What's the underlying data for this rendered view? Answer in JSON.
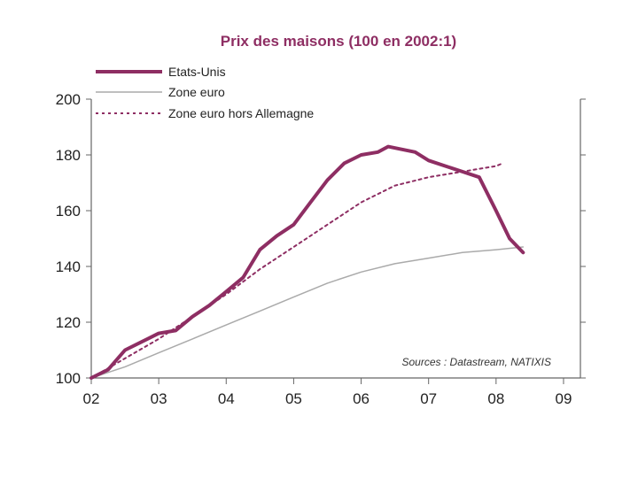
{
  "chart_data": {
    "type": "line",
    "title": "Prix des maisons (100 en 2002:1)",
    "xlabel": "",
    "ylabel": "",
    "x_ticks": [
      "02",
      "03",
      "04",
      "05",
      "06",
      "07",
      "08",
      "09"
    ],
    "y_ticks": [
      "100",
      "120",
      "140",
      "160",
      "180",
      "200"
    ],
    "xlim": [
      2002,
      2009.25
    ],
    "ylim": [
      100,
      200
    ],
    "grid": false,
    "legend_position": "top-left",
    "source": "Sources : Datastream, NATIXIS",
    "series": [
      {
        "name": "Etats-Unis",
        "color": "#8e2e63",
        "style": "solid-thick",
        "x": [
          2002.0,
          2002.25,
          2002.5,
          2002.75,
          2003.0,
          2003.25,
          2003.5,
          2003.75,
          2004.0,
          2004.25,
          2004.5,
          2004.75,
          2005.0,
          2005.25,
          2005.5,
          2005.75,
          2006.0,
          2006.25,
          2006.4,
          2006.6,
          2006.8,
          2007.0,
          2007.25,
          2007.5,
          2007.75,
          2008.0,
          2008.2,
          2008.4
        ],
        "y": [
          100,
          103,
          110,
          113,
          116,
          117,
          122,
          126,
          131,
          136,
          146,
          151,
          155,
          163,
          171,
          177,
          180,
          181,
          183,
          182,
          181,
          178,
          176,
          174,
          172,
          160,
          150,
          145
        ]
      },
      {
        "name": "Zone euro",
        "color": "#aaaaaa",
        "style": "solid-thin",
        "x": [
          2002.0,
          2002.5,
          2003.0,
          2003.5,
          2004.0,
          2004.5,
          2005.0,
          2005.5,
          2006.0,
          2006.5,
          2007.0,
          2007.5,
          2008.0,
          2008.4
        ],
        "y": [
          100,
          104,
          109,
          114,
          119,
          124,
          129,
          134,
          138,
          141,
          143,
          145,
          146,
          147
        ]
      },
      {
        "name": "Zone euro hors Allemagne",
        "color": "#8e2e63",
        "style": "dotted",
        "x": [
          2002.0,
          2002.5,
          2003.0,
          2003.5,
          2004.0,
          2004.5,
          2005.0,
          2005.5,
          2006.0,
          2006.5,
          2007.0,
          2007.5,
          2008.0,
          2008.1
        ],
        "y": [
          100,
          107,
          114,
          122,
          130,
          139,
          147,
          155,
          163,
          169,
          172,
          174,
          176,
          177
        ]
      }
    ]
  }
}
